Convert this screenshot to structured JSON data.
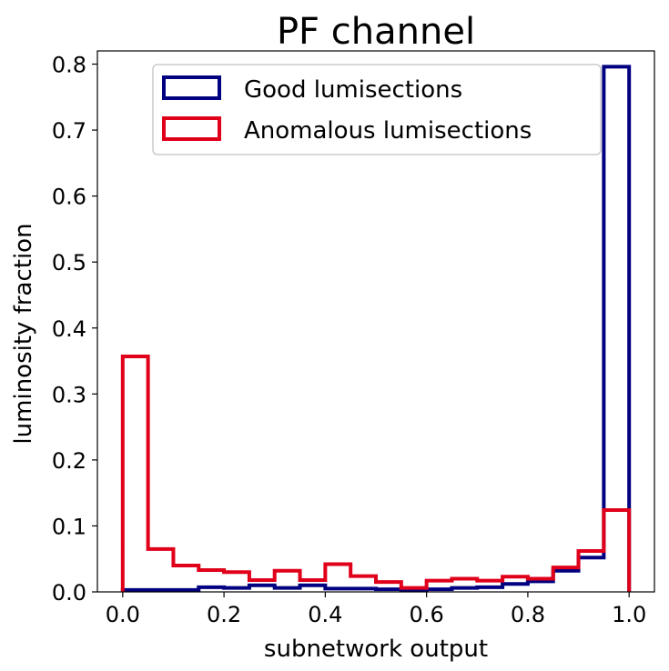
{
  "chart_data": {
    "type": "step-histogram",
    "title": "PF channel",
    "xlabel": "subnetwork output",
    "ylabel": "luminosity fraction",
    "xlim": [
      -0.05,
      1.05
    ],
    "ylim": [
      0.0,
      0.82
    ],
    "xticks": [
      "0.0",
      "0.2",
      "0.4",
      "0.6",
      "0.8",
      "1.0"
    ],
    "yticks": [
      "0.0",
      "0.1",
      "0.2",
      "0.3",
      "0.4",
      "0.5",
      "0.6",
      "0.7",
      "0.8"
    ],
    "bin_edges": [
      0.0,
      0.05,
      0.1,
      0.15,
      0.2,
      0.25,
      0.3,
      0.35,
      0.4,
      0.45,
      0.5,
      0.55,
      0.6,
      0.65,
      0.7,
      0.75,
      0.8,
      0.85,
      0.9,
      0.95,
      1.0
    ],
    "legend_position": "upper-right",
    "grid": false,
    "series": [
      {
        "name": "Good lumisections",
        "color": "#000080",
        "values": [
          0.003,
          0.003,
          0.003,
          0.007,
          0.006,
          0.01,
          0.006,
          0.01,
          0.005,
          0.005,
          0.004,
          0.003,
          0.004,
          0.006,
          0.007,
          0.012,
          0.016,
          0.032,
          0.052,
          0.796
        ]
      },
      {
        "name": "Anomalous lumisections",
        "color": "#e0001a",
        "values": [
          0.357,
          0.065,
          0.04,
          0.033,
          0.03,
          0.018,
          0.032,
          0.018,
          0.042,
          0.024,
          0.015,
          0.006,
          0.017,
          0.02,
          0.017,
          0.023,
          0.02,
          0.037,
          0.062,
          0.124
        ]
      }
    ]
  }
}
